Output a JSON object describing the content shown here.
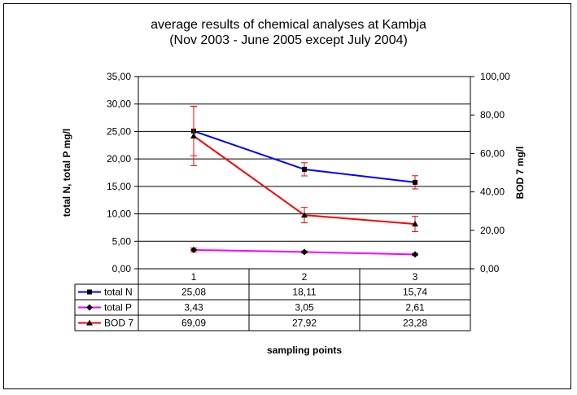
{
  "chart_data": {
    "type": "line",
    "title_line1": "average results of chemical analyses at Kambja",
    "title_line2": "(Nov 2003 - June 2005 except July 2004)",
    "xlabel": "sampling points",
    "ylabel_left": "total N, total P  mg/l",
    "ylabel_right": "BOD 7  mg/l",
    "categories": [
      "1",
      "2",
      "3"
    ],
    "y_left_range": [
      0,
      35
    ],
    "y_left_ticks": [
      "0,00",
      "5,00",
      "10,00",
      "15,00",
      "20,00",
      "25,00",
      "30,00",
      "35,00"
    ],
    "y_right_range": [
      0,
      100
    ],
    "y_right_ticks": [
      "0,00",
      "20,00",
      "40,00",
      "60,00",
      "80,00",
      "100,00"
    ],
    "grid": true,
    "series": [
      {
        "name": "total N",
        "axis": "left",
        "color": "#0000ff",
        "marker": "square",
        "values": [
          25.08,
          18.11,
          15.74
        ],
        "labels": [
          "25,08",
          "18,11",
          "15,74"
        ],
        "error": [
          4.5,
          1.2,
          1.2
        ]
      },
      {
        "name": "total P",
        "axis": "left",
        "color": "#ff00ff",
        "marker": "diamond",
        "values": [
          3.43,
          3.05,
          2.61
        ],
        "labels": [
          "3,43",
          "3,05",
          "2,61"
        ],
        "error": [
          0.35,
          0.2,
          0.2
        ]
      },
      {
        "name": "BOD 7",
        "axis": "right",
        "color": "#ff0000",
        "marker": "triangle",
        "values": [
          69.09,
          27.92,
          23.28
        ],
        "labels": [
          "69,09",
          "27,92",
          "23,28"
        ],
        "error": [
          15.5,
          4,
          4
        ]
      }
    ]
  }
}
